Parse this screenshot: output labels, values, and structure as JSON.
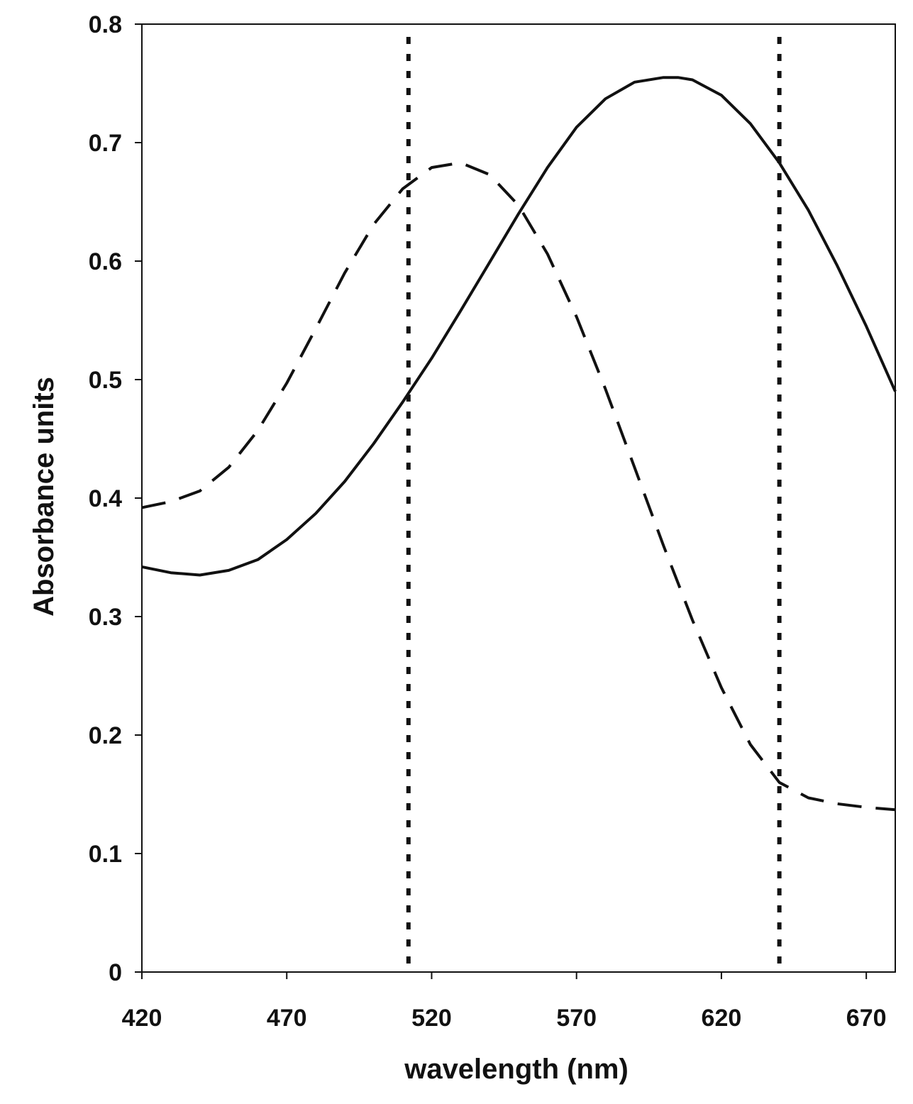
{
  "chart_data": {
    "type": "line",
    "title": "",
    "xlabel": "wavelength (nm)",
    "ylabel": "Absorbance units",
    "xlim": [
      420,
      680
    ],
    "ylim": [
      0,
      0.8
    ],
    "xticks": [
      420,
      470,
      520,
      570,
      620,
      670
    ],
    "xtick_labels": [
      "420",
      "470",
      "520",
      "570",
      "620",
      "670"
    ],
    "yticks": [
      0,
      0.1,
      0.2,
      0.3,
      0.4,
      0.5,
      0.6,
      0.7,
      0.8
    ],
    "ytick_labels": [
      "0",
      "0.1",
      "0.2",
      "0.3",
      "0.4",
      "0.5",
      "0.6",
      "0.7",
      "0.8"
    ],
    "grid": false,
    "legend": "none",
    "series": [
      {
        "style": "solid",
        "color": "#111111",
        "x": [
          420,
          430,
          440,
          450,
          460,
          470,
          480,
          490,
          500,
          510,
          520,
          530,
          540,
          550,
          560,
          570,
          580,
          590,
          600,
          605,
          610,
          620,
          630,
          640,
          650,
          660,
          670,
          680
        ],
        "y": [
          0.342,
          0.337,
          0.335,
          0.339,
          0.348,
          0.365,
          0.387,
          0.414,
          0.446,
          0.481,
          0.518,
          0.558,
          0.599,
          0.64,
          0.679,
          0.713,
          0.737,
          0.751,
          0.755,
          0.755,
          0.753,
          0.74,
          0.716,
          0.683,
          0.643,
          0.596,
          0.545,
          0.49
        ]
      },
      {
        "style": "dashed",
        "color": "#111111",
        "x": [
          420,
          430,
          440,
          450,
          460,
          470,
          480,
          490,
          500,
          510,
          520,
          530,
          540,
          550,
          560,
          570,
          580,
          590,
          600,
          610,
          620,
          630,
          640,
          650,
          660,
          670,
          680
        ],
        "y": [
          0.392,
          0.397,
          0.406,
          0.426,
          0.457,
          0.497,
          0.543,
          0.59,
          0.631,
          0.661,
          0.679,
          0.683,
          0.673,
          0.647,
          0.606,
          0.553,
          0.492,
          0.426,
          0.36,
          0.297,
          0.24,
          0.192,
          0.16,
          0.147,
          0.142,
          0.139,
          0.137
        ]
      }
    ],
    "vertical_lines": [
      {
        "x": 512,
        "style": "dotted"
      },
      {
        "x": 640,
        "style": "dotted"
      }
    ]
  }
}
